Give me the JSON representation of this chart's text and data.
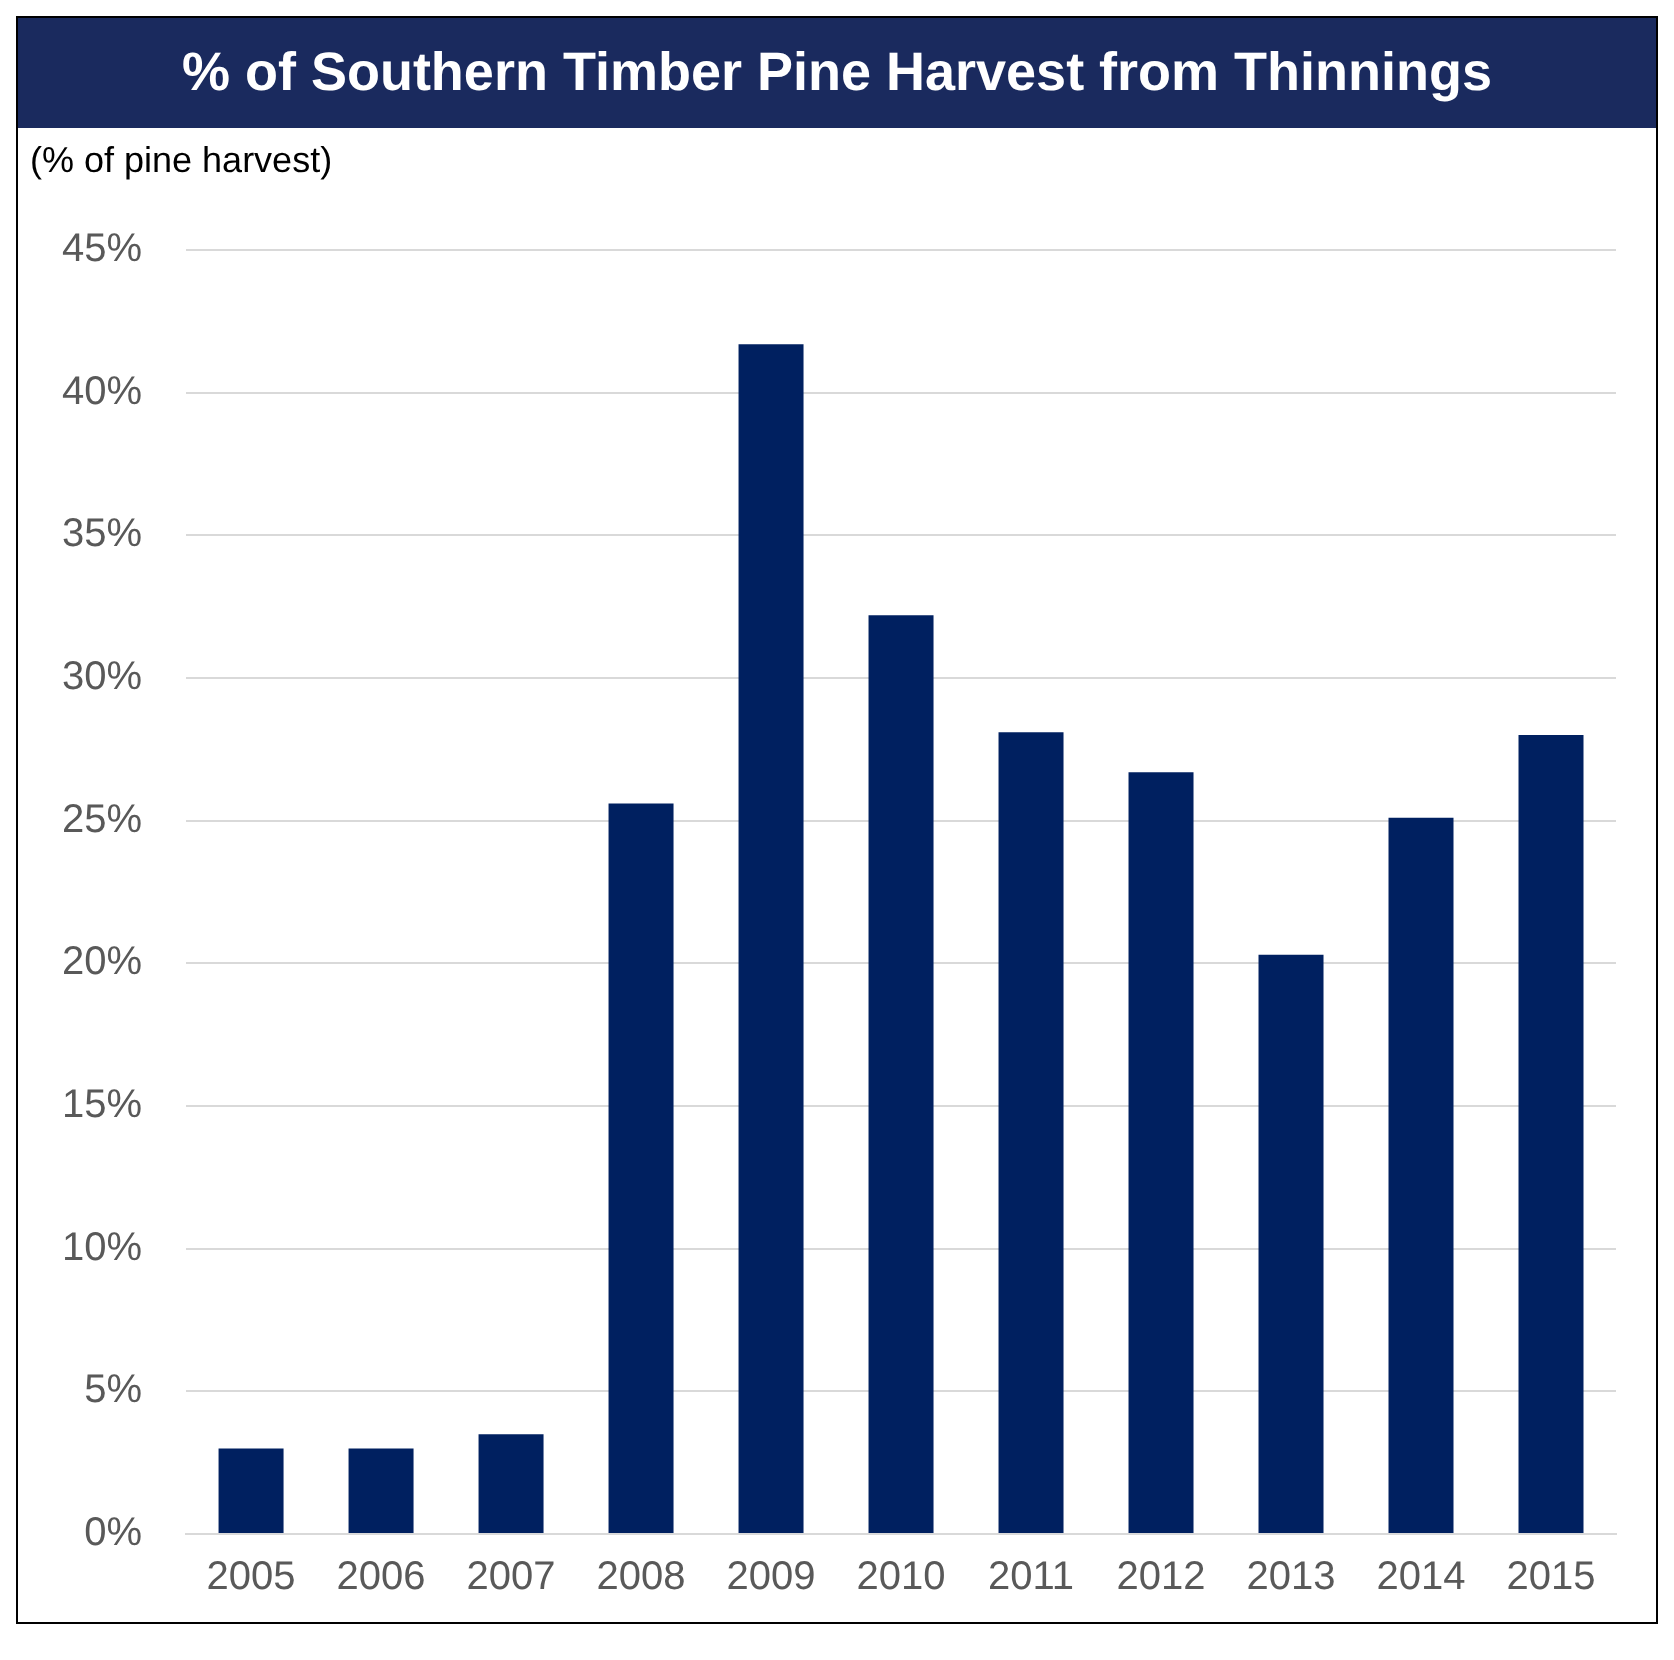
{
  "chart_data": {
    "type": "bar",
    "title": "% of Southern Timber Pine Harvest from Thinnings",
    "ylabel": "(% of pine harvest)",
    "categories": [
      "2005",
      "2006",
      "2007",
      "2008",
      "2009",
      "2010",
      "2011",
      "2012",
      "2013",
      "2014",
      "2015"
    ],
    "values": [
      3,
      3,
      3.5,
      25.6,
      41.7,
      32.2,
      28.1,
      26.7,
      20.3,
      25.1,
      28
    ],
    "color": "#002060",
    "ylim": [
      0,
      45
    ],
    "yticks": [
      {
        "value": 0,
        "label": "0%"
      },
      {
        "value": 5,
        "label": "5%"
      },
      {
        "value": 10,
        "label": "10%"
      },
      {
        "value": 15,
        "label": "15%"
      },
      {
        "value": 20,
        "label": "20%"
      },
      {
        "value": 25,
        "label": "25%"
      },
      {
        "value": 30,
        "label": "30%"
      },
      {
        "value": 35,
        "label": "35%"
      },
      {
        "value": 40,
        "label": "40%"
      },
      {
        "value": 45,
        "label": "45%"
      }
    ],
    "grid": "y",
    "legend": false
  }
}
